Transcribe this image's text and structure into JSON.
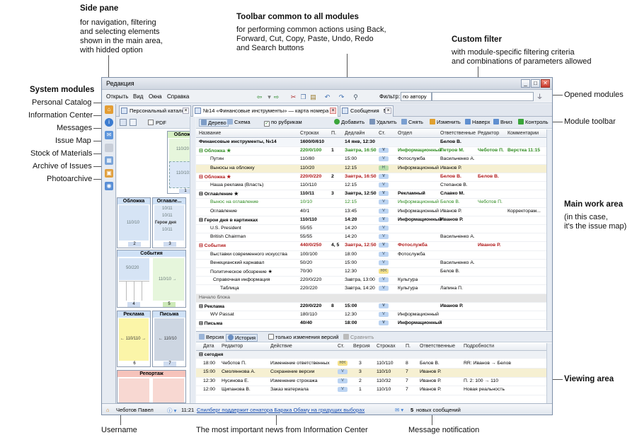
{
  "annotations": {
    "side_pane_title": "Side pane",
    "side_pane_desc": [
      "for navigation, filtering",
      "and selecting elements",
      "shown in the main area,",
      "with hidded option"
    ],
    "toolbar_title": "Toolbar common to all modules",
    "toolbar_desc": [
      "for performing common actions using Back,",
      "Forward, Cut, Copy, Paste, Undo, Redo",
      "and Search buttons"
    ],
    "custom_filter_title": "Custom filter",
    "custom_filter_desc": [
      "with module-specific filtering criteria",
      "and combinations of parameters allowed"
    ],
    "system_modules": "System modules",
    "sys_items": [
      "Personal Catalog",
      "Information Center",
      "Messages",
      "Issue Map",
      "Stock of Materials",
      "Archive of Issues",
      "Photoarchive"
    ],
    "opened_modules": "Opened modules",
    "module_toolbar": "Module toolbar",
    "main_work_area_title": "Main work area",
    "main_work_area_desc": [
      "(in this case,",
      "it's the issue map)"
    ],
    "viewing_area": "Viewing area",
    "username": "Username",
    "news": "The most important news from Information Center",
    "message_notification": "Message notification"
  },
  "window": {
    "title": "Редакция",
    "menu": [
      "Открыть",
      "Вид",
      "Окна",
      "Справка"
    ],
    "filter_label": "Фильтр:",
    "filter_value": "по автору"
  },
  "tabs": [
    {
      "label": "Персональный каталог"
    },
    {
      "label": "№14 «Финансовые инструменты» — карта номера"
    },
    {
      "label": "Сообщения",
      "count": "5"
    }
  ],
  "side": {
    "pdf_label": "PDF",
    "pages": [
      {
        "title": "Обложка",
        "lines": [
          "110/20",
          "110/101"
        ],
        "num": "1"
      },
      {
        "title": "Обложка",
        "lines": [
          "110/10"
        ],
        "num": "2"
      },
      {
        "title": "Оглавле...",
        "lines": [
          "10/11",
          "10/11",
          "Герои дня",
          "10/11"
        ],
        "num": "3"
      },
      {
        "title": "События",
        "lines": [
          "50/220",
          "110/10 →"
        ],
        "num": "4",
        "num2": "5"
      },
      {
        "title": "Реклама",
        "lines": [
          "← 110/110 →"
        ],
        "num": "6"
      },
      {
        "title": "Письма",
        "lines": [
          "← 110/10"
        ],
        "num": "7"
      },
      {
        "title": "Репортаж",
        "lines": []
      }
    ]
  },
  "module_toolbar": {
    "tree": "Дерево",
    "scheme": "Схема",
    "by_rubric": "по рубрикам",
    "add": "Добавить",
    "delete": "Удалить",
    "remove": "Снять",
    "edit": "Изменить",
    "up": "Наверх",
    "down": "Вниз",
    "control": "Контроль"
  },
  "grid": {
    "headers": [
      "Название",
      "Строках",
      "П.",
      "Дедлайн",
      "Ст.",
      "Отдел",
      "Ответственные",
      "Редактор",
      "Комментарии"
    ],
    "rows": [
      {
        "name": "Финансовые инструменты, №14",
        "lines": "1600/0/610",
        "p": "",
        "deadline": "14 янв, 12:30",
        "st": "",
        "dept": "",
        "resp": "Белов В.",
        "editor": "",
        "comment": "",
        "type": "issue"
      },
      {
        "name": "Обложка ★",
        "lines": "220/0/100",
        "p": "1",
        "deadline": "Завтра, 16:50",
        "st": "V",
        "dept": "Информационный",
        "resp": "Петров М.",
        "editor": "Чеботов П.",
        "comment": "Верстка 11:15",
        "type": "grp-green"
      },
      {
        "name": "Путин",
        "lines": "110/80",
        "p": "",
        "deadline": "15:00",
        "st": "V",
        "dept": "Фотослужба",
        "resp": "Васильченко А.",
        "editor": "",
        "comment": "",
        "type": "item"
      },
      {
        "name": "Выносы на обложку",
        "lines": "110/20",
        "p": "",
        "deadline": "12:15",
        "st": "R",
        "dept": "Информационный",
        "resp": "Иванов Р.",
        "editor": "",
        "comment": "",
        "type": "item-hl"
      },
      {
        "name": "Обложка ★",
        "lines": "220/0/220",
        "p": "2",
        "deadline": "Завтра, 16:50",
        "st": "V",
        "dept": "",
        "resp": "Белов В.",
        "editor": "Белов В.",
        "comment": "",
        "type": "grp-red"
      },
      {
        "name": "Наша реклама (Власть)",
        "lines": "110/110",
        "p": "",
        "deadline": "12:15",
        "st": "V",
        "dept": "",
        "resp": "Степанов В.",
        "editor": "",
        "comment": "",
        "type": "item"
      },
      {
        "name": "Оглавление ★",
        "lines": "110/11",
        "p": "3",
        "deadline": "Завтра, 12:50",
        "st": "V",
        "dept": "Рекламный",
        "resp": "Славко М.",
        "editor": "",
        "comment": "",
        "type": "grp"
      },
      {
        "name": "Вынос на оглавление",
        "lines": "10/10",
        "p": "",
        "deadline": "12:15",
        "st": "V",
        "dept": "Информационный",
        "resp": "Белов В.",
        "editor": "Чеботов П.",
        "comment": "",
        "type": "item-green"
      },
      {
        "name": "Оглавление",
        "lines": "40/1",
        "p": "",
        "deadline": "13:45",
        "st": "V",
        "dept": "Информационный",
        "resp": "Иванов Р.",
        "editor": "",
        "comment": "Корректорам...",
        "type": "item"
      },
      {
        "name": "Герои дня в картинках",
        "lines": "110/110",
        "p": "",
        "deadline": "14:20",
        "st": "V",
        "dept": "Информационный",
        "resp": "Иванов Р.",
        "editor": "",
        "comment": "",
        "type": "grp"
      },
      {
        "name": "U.S. President",
        "lines": "55/55",
        "p": "",
        "deadline": "14:20",
        "st": "V",
        "dept": "",
        "resp": "",
        "editor": "",
        "comment": "",
        "type": "item"
      },
      {
        "name": "British Chairman",
        "lines": "55/55",
        "p": "",
        "deadline": "14:20",
        "st": "V",
        "dept": "",
        "resp": "Васильченко А.",
        "editor": "",
        "comment": "",
        "type": "item"
      },
      {
        "name": "События",
        "lines": "440/0/250",
        "p": "4, 5",
        "deadline": "Завтра, 12:50",
        "st": "V",
        "dept": "Фотослужба",
        "resp": "",
        "editor": "Иванов Р.",
        "comment": "",
        "type": "grp-red"
      },
      {
        "name": "Выставки современного искусства",
        "lines": "100/100",
        "p": "",
        "deadline": "18:00",
        "st": "V",
        "dept": "Фотослужба",
        "resp": "",
        "editor": "",
        "comment": "",
        "type": "item"
      },
      {
        "name": "Венецианский карнавал",
        "lines": "50/20",
        "p": "",
        "deadline": "15:00",
        "st": "V",
        "dept": "",
        "resp": "Васильченко А.",
        "editor": "",
        "comment": "",
        "type": "item"
      },
      {
        "name": "Политическое обозрение ★",
        "lines": "70/30",
        "p": "",
        "deadline": "12:30",
        "st": "RR",
        "dept": "",
        "resp": "Белов В.",
        "editor": "",
        "comment": "",
        "type": "item"
      },
      {
        "name": "Справочная информация",
        "lines": "220/0/220",
        "p": "",
        "deadline": "Завтра, 13:00",
        "st": "V",
        "dept": "Культура",
        "resp": "",
        "editor": "",
        "comment": "",
        "type": "item2"
      },
      {
        "name": "Таблица",
        "lines": "220/220",
        "p": "",
        "deadline": "Завтра, 14:20",
        "st": "V",
        "dept": "Культура",
        "resp": "Лапина П.",
        "editor": "",
        "comment": "",
        "type": "item3"
      },
      {
        "name": "Начало блока",
        "lines": "",
        "p": "",
        "deadline": "",
        "st": "",
        "dept": "",
        "resp": "",
        "editor": "",
        "comment": "",
        "type": "section"
      },
      {
        "name": "Реклама",
        "lines": "220/0/220",
        "p": "8",
        "deadline": "15:00",
        "st": "V",
        "dept": "",
        "resp": "Иванов Р.",
        "editor": "",
        "comment": "",
        "type": "grp"
      },
      {
        "name": "WV Passat",
        "lines": "180/110",
        "p": "",
        "deadline": "12:30",
        "st": "V",
        "dept": "Информационный",
        "resp": "",
        "editor": "",
        "comment": "",
        "type": "item"
      },
      {
        "name": "Письма",
        "lines": "40/40",
        "p": "",
        "deadline": "18:00",
        "st": "V",
        "dept": "Информационный",
        "resp": "",
        "editor": "",
        "comment": "",
        "type": "grp"
      }
    ]
  },
  "history": {
    "version_tab": "Версия",
    "history_tab": "История",
    "only_changes": "только изменения версий",
    "compare": "Сравнить",
    "headers": [
      "Дата",
      "Редактор",
      "Действие",
      "Ст.",
      "Версия",
      "Строках",
      "П.",
      "Ответственные",
      "Подробности"
    ],
    "section": "сегодня",
    "rows": [
      {
        "date": "18:00",
        "editor": "Чеботов П.",
        "action": "Изменение ответственных",
        "st": "RR",
        "version": "3",
        "lines": "110/110",
        "p": "8",
        "resp": "Белов В.",
        "details": "RR: Иванов → Белов"
      },
      {
        "date": "15:00",
        "editor": "Смоляннова А.",
        "action": "Сохранение версии",
        "st": "V",
        "version": "3",
        "lines": "110/10",
        "p": "7",
        "resp": "Иванов Р.",
        "details": ""
      },
      {
        "date": "12:30",
        "editor": "Нусинова Е.",
        "action": "Изменение строкажа",
        "st": "V",
        "version": "2",
        "lines": "110/32",
        "p": "7",
        "resp": "Иванов Р.",
        "details": "П. 2: 100 → 110"
      },
      {
        "date": "12:00",
        "editor": "Щипанова В.",
        "action": "Заказ материала",
        "st": "V",
        "version": "1",
        "lines": "110/10",
        "p": "7",
        "resp": "Иванов Р.",
        "details": "Новая реальность"
      }
    ]
  },
  "status": {
    "user": "Чеботов Павел",
    "time": "11:21",
    "news": "Спилберг поддержит сенатора Барака Обаму на грядущих выборах",
    "msg_count": "5",
    "msg_text": "новых сообщений"
  }
}
